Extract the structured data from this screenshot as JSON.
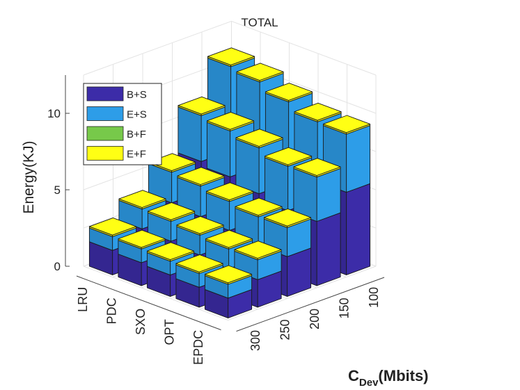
{
  "chart_data": {
    "type": "bar",
    "title": "TOTAL",
    "zlabel": "Energy(KJ)",
    "ylabel": {
      "main": "C",
      "sub": "Dev",
      "rest": "(Mbits)"
    },
    "methods": [
      "LRU",
      "PDC",
      "SXO",
      "OPT",
      "EPDC"
    ],
    "capacities": [
      "300",
      "250",
      "200",
      "150",
      "100"
    ],
    "z_ticks": [
      "0",
      "5",
      "10"
    ],
    "zlim": [
      0,
      12.5
    ],
    "legend": {
      "position": "top-left",
      "entries": [
        "B+S",
        "E+S",
        "B+F",
        "E+F"
      ]
    },
    "colors": {
      "B+S": "#3c2ca8",
      "E+S": "#2d9de8",
      "B+F": "#77c94a",
      "E+F": "#ffff14"
    },
    "series": [
      {
        "name": "B+S",
        "values": [
          [
            1.6,
            2.3,
            3.3,
            5.3,
            6.8
          ],
          [
            1.5,
            2.2,
            3.1,
            5.0,
            6.5
          ],
          [
            1.4,
            2.0,
            2.9,
            4.6,
            6.0
          ],
          [
            1.3,
            1.8,
            2.6,
            4.2,
            5.5
          ],
          [
            1.3,
            1.8,
            2.6,
            4.2,
            5.4
          ]
        ]
      },
      {
        "name": "E+S",
        "values": [
          [
            0.9,
            1.3,
            2.0,
            3.0,
            4.0
          ],
          [
            0.9,
            1.3,
            2.0,
            3.0,
            4.0
          ],
          [
            0.9,
            1.3,
            1.9,
            3.0,
            3.9
          ],
          [
            0.9,
            1.3,
            1.9,
            2.9,
            3.8
          ],
          [
            0.9,
            1.3,
            1.9,
            2.9,
            3.8
          ]
        ]
      },
      {
        "name": "B+F",
        "values": [
          [
            0,
            0,
            0,
            0,
            0
          ],
          [
            0,
            0,
            0,
            0,
            0
          ],
          [
            0,
            0,
            0,
            0,
            0
          ],
          [
            0,
            0,
            0,
            0,
            0
          ],
          [
            0,
            0,
            0,
            0,
            0
          ]
        ]
      },
      {
        "name": "E+F",
        "values": [
          [
            0.1,
            0.1,
            0.1,
            0.1,
            0.1
          ],
          [
            0.1,
            0.1,
            0.1,
            0.1,
            0.1
          ],
          [
            0.1,
            0.1,
            0.1,
            0.1,
            0.1
          ],
          [
            0.1,
            0.1,
            0.1,
            0.1,
            0.1
          ],
          [
            0.1,
            0.1,
            0.1,
            0.1,
            0.1
          ]
        ]
      }
    ]
  }
}
